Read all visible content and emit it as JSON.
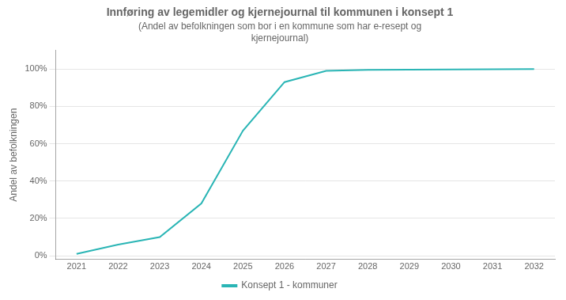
{
  "chart_data": {
    "type": "line",
    "title": "Innføring av legemidler og kjernejournal til kommunen i konsept 1",
    "subtitle": "(Andel av befolkningen som bor i en kommune som har e-resept og\nkjernejournal)",
    "y_label": "Andel av befolkningen",
    "x": [
      2021,
      2022,
      2023,
      2024,
      2025,
      2026,
      2027,
      2028,
      2029,
      2030,
      2031,
      2032
    ],
    "series": [
      {
        "name": "Konsept 1 - kommuner",
        "color": "#2ab5b5",
        "values": [
          0.01,
          0.06,
          0.1,
          0.28,
          0.67,
          0.93,
          0.99,
          0.995,
          0.997,
          0.998,
          0.999,
          1.0
        ]
      }
    ],
    "xlim": [
      2020.5,
      2032.5
    ],
    "xticks": [
      2021,
      2022,
      2023,
      2024,
      2025,
      2026,
      2027,
      2028,
      2029,
      2030,
      2031,
      2032
    ],
    "ylim": [
      -0.02,
      1.1
    ],
    "yticks": [
      {
        "value": 0.0,
        "label": "0%"
      },
      {
        "value": 0.2,
        "label": "20%"
      },
      {
        "value": 0.4,
        "label": "40%"
      },
      {
        "value": 0.6,
        "label": "60%"
      },
      {
        "value": 0.8,
        "label": "80%"
      },
      {
        "value": 1.0,
        "label": "100%"
      }
    ],
    "grid": true,
    "legend": "bottom"
  }
}
